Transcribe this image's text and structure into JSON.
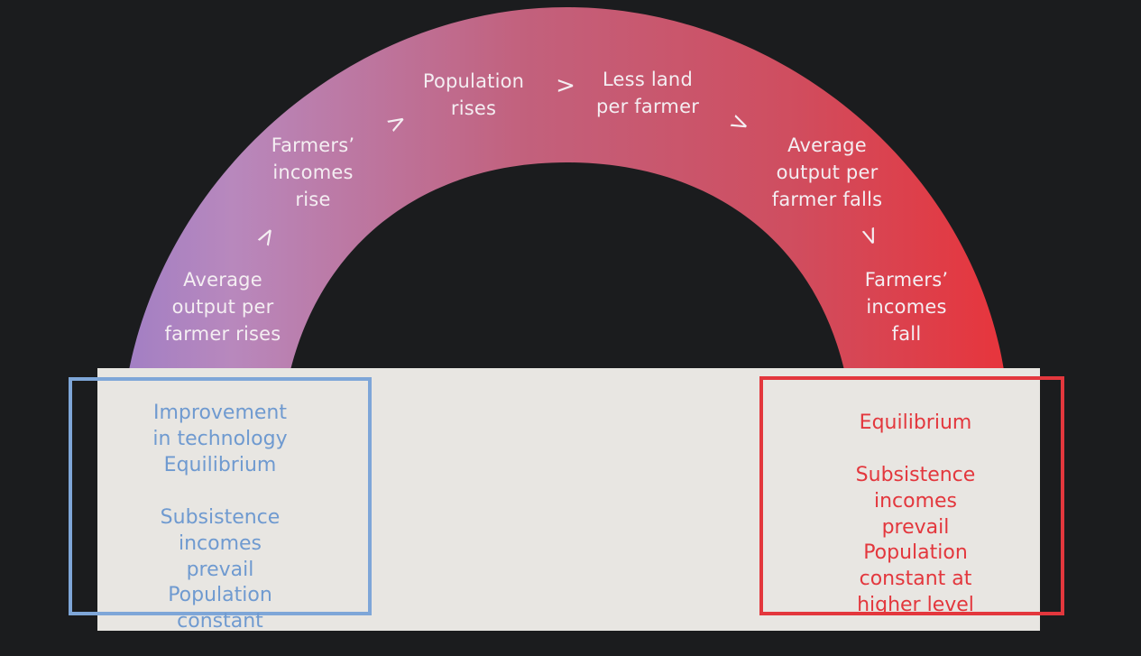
{
  "colors": {
    "background": "#1b1c1e",
    "panel": "#e8e6e2",
    "arc_start": "#a27fc4",
    "arc_middle": "#c2617d",
    "arc_end": "#e7353c",
    "left_box": "#7ea6d8",
    "right_box": "#e3373d",
    "arc_text": "#f4eef2"
  },
  "cycle": {
    "steps": [
      {
        "label": "Average\noutput per\nfarmer rises"
      },
      {
        "label": "Farmers’\nincomes\nrise"
      },
      {
        "label": "Population\nrises"
      },
      {
        "label": "Less land\nper farmer"
      },
      {
        "label": "Average\noutput per\nfarmer falls"
      },
      {
        "label": "Farmers’\nincomes\nfall"
      }
    ],
    "arrow_glyph": ">"
  },
  "left_box": {
    "lines": [
      "Improvement in technology",
      "Equilibrium",
      "Subsistence incomes\nprevail",
      "Population constant"
    ]
  },
  "right_box": {
    "lines": [
      "Equilibrium",
      "Subsistence incomes\nprevail",
      "Population constant at\nhigher level"
    ]
  }
}
